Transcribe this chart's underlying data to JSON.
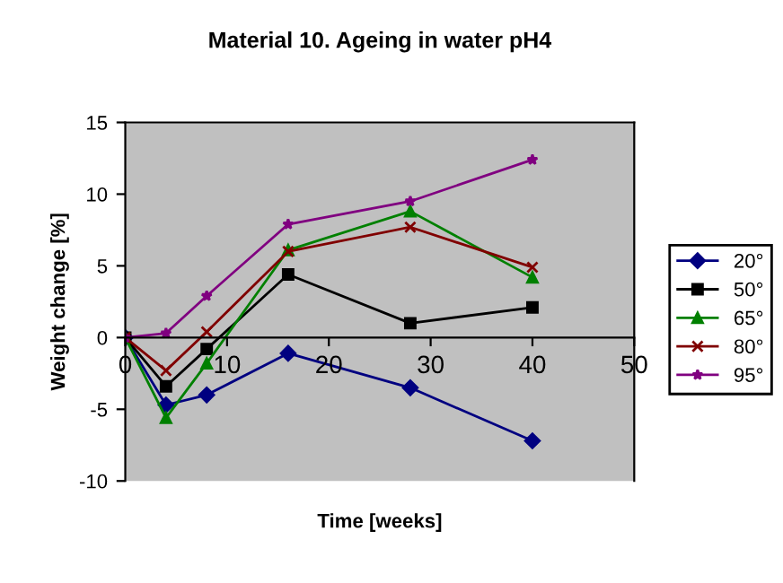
{
  "chart_data": {
    "type": "line",
    "title": "Material 10. Ageing in water pH4",
    "xlabel": "Time [weeks]",
    "ylabel": "Weight change [%]",
    "xlim": [
      0,
      50
    ],
    "xticks": [
      0,
      10,
      20,
      30,
      40,
      50
    ],
    "ylim": [
      -10,
      15
    ],
    "yticks": [
      -10,
      -5,
      0,
      5,
      10,
      15
    ],
    "grid": false,
    "legend": "right",
    "series": [
      {
        "name": "20°",
        "color": "#000080",
        "marker": "diamond",
        "x": [
          0,
          4,
          8,
          16,
          28,
          40
        ],
        "values": [
          0,
          -4.7,
          -4.0,
          -1.1,
          -3.5,
          -7.2
        ]
      },
      {
        "name": "50°",
        "color": "#000000",
        "marker": "square",
        "x": [
          0,
          4,
          8,
          16,
          28,
          40
        ],
        "values": [
          0,
          -3.4,
          -0.8,
          4.4,
          1.0,
          2.1
        ]
      },
      {
        "name": "65°",
        "color": "#008000",
        "marker": "triangle",
        "x": [
          0,
          4,
          8,
          16,
          28,
          40
        ],
        "values": [
          0,
          -5.6,
          -1.8,
          6.1,
          8.8,
          4.2
        ]
      },
      {
        "name": "80°",
        "color": "#800000",
        "marker": "cross",
        "x": [
          0,
          4,
          8,
          16,
          28,
          40
        ],
        "values": [
          0,
          -2.3,
          0.4,
          6.0,
          7.7,
          4.9
        ]
      },
      {
        "name": "95°",
        "color": "#800080",
        "marker": "star",
        "x": [
          0,
          4,
          8,
          16,
          28,
          40
        ],
        "values": [
          0,
          0.3,
          2.9,
          7.9,
          9.5,
          12.4
        ]
      }
    ]
  }
}
